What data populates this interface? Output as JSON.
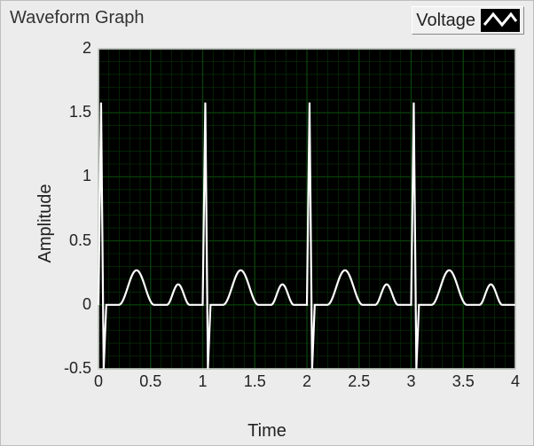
{
  "panel": {
    "title": "Waveform Graph",
    "background_color": "#ececec",
    "border_color": "#bfbfbf",
    "title_fontsize": 20,
    "title_color": "#333333"
  },
  "legend": {
    "label": "Voltage",
    "swatch_bg": "#000000",
    "line_color": "#ffffff",
    "line_style": "zigzag",
    "box_face": "#f0f0f0",
    "box_light": "#ffffff",
    "box_dark": "#888888",
    "label_fontsize": 20
  },
  "chart": {
    "type": "line",
    "plot_bg": "#000000",
    "grid_major_color": "#0a3d0a",
    "grid_minor_color": "#063006",
    "grid_major_width": 1.4,
    "grid_minor_width": 0.7,
    "axis_frame_color": "#d9d9d9",
    "line_color": "#ffffff",
    "line_width": 2.2,
    "xlim": [
      0,
      4
    ],
    "ylim": [
      -0.5,
      2
    ],
    "xtick_step": 0.5,
    "ytick_step": 0.5,
    "x_minor_divisions": 5,
    "y_minor_divisions": 5,
    "xlabel": "Time",
    "ylabel": "Amplitude",
    "label_fontsize": 20,
    "tick_fontsize": 18,
    "xticks": [
      0,
      0.5,
      1,
      1.5,
      2,
      2.5,
      3,
      3.5,
      4
    ],
    "yticks": [
      -0.5,
      0,
      0.5,
      1,
      1.5,
      2
    ],
    "series": [
      {
        "name": "Voltage",
        "color": "#ffffff",
        "width": 2.2,
        "spike_x": [
          0.025,
          1.025,
          2.025,
          3.025
        ],
        "spike_peak": 1.58,
        "spike_trough": -0.5,
        "spike_half_width": 0.025,
        "bump1_center_offset": 0.34,
        "bump1_amp": 0.27,
        "bump1_half_width": 0.17,
        "bump2_center_offset": 0.74,
        "bump2_amp": 0.16,
        "bump2_half_width": 0.11,
        "baseline": 0.0,
        "period": 1.0,
        "cycles": 4,
        "samples_per_cycle": 240
      }
    ]
  }
}
